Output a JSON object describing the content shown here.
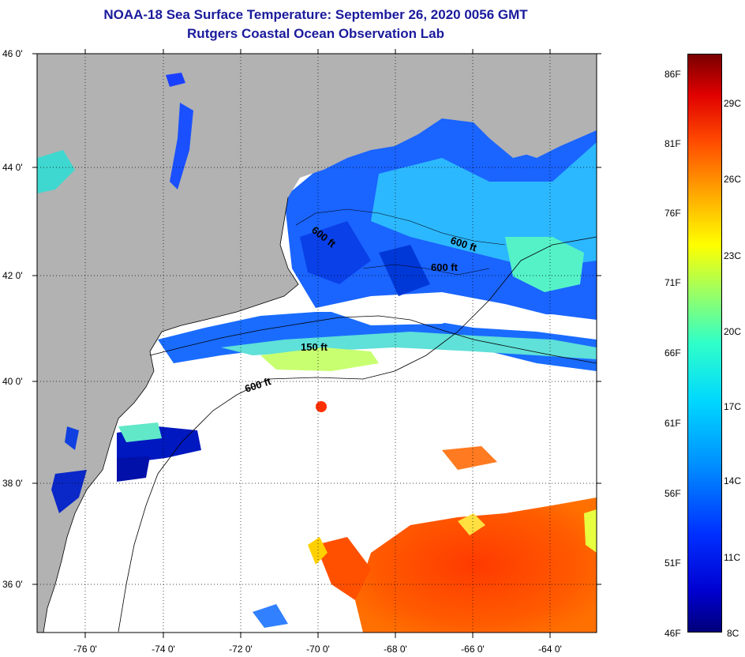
{
  "header": {
    "title": "NOAA-18 Sea Surface Temperature:  September 26, 2020 0056 GMT",
    "subtitle": "Rutgers Coastal Ocean Observation Lab"
  },
  "axes": {
    "lat_labels": [
      "46 0'",
      "44 0'",
      "42 0'",
      "40 0'",
      "38 0'",
      "36 0'"
    ],
    "lon_labels": [
      "-76 0'",
      "-74 0'",
      "-72 0'",
      "-70 0'",
      "-68 0'",
      "-66 0'",
      "-64 0'"
    ]
  },
  "contours": {
    "label_600_a": "600 ft",
    "label_600_b": "600 ft",
    "label_600_c": "600 ft",
    "label_150": "150 ft",
    "label_600_d": "600 ft"
  },
  "colorbar": {
    "f_labels": [
      "86F",
      "81F",
      "76F",
      "71F",
      "66F",
      "61F",
      "56F",
      "51F",
      "46F"
    ],
    "c_labels": [
      "29C",
      "26C",
      "23C",
      "20C",
      "17C",
      "14C",
      "11C",
      "8C"
    ]
  },
  "colors": {
    "land": "#b2b2b2",
    "no_data": "#ffffff",
    "title": "#1a1a9c"
  }
}
